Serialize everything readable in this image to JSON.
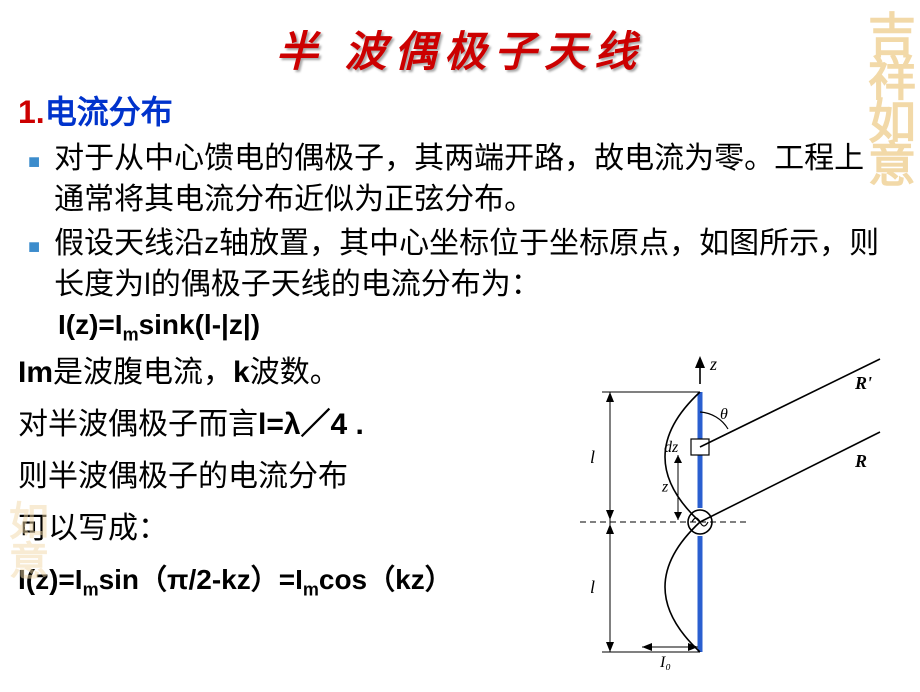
{
  "title": "半 波偶极子天线",
  "watermark_tr": "吉祥如意",
  "watermark_bl": "如意",
  "section": {
    "num": "1.",
    "text": "电流分布"
  },
  "bullets": [
    "对于从中心馈电的偶极子，其两端开路，故电流为零。工程上通常将其电流分布近似为正弦分布。",
    "假设天线沿z轴放置，其中心坐标位于坐标原点，如图所示，则长度为l的偶极子天线的电流分布为："
  ],
  "formula1": {
    "pre": "I(z)=I",
    "sub": "m",
    "post": "sink(l-|z|)"
  },
  "line1": {
    "a": "Im",
    "b": "是波腹电流，",
    "c": "k",
    "d": "波数。"
  },
  "line2": {
    "a": "对半波偶极子而言",
    "b": "l=λ／4 ."
  },
  "line3": "则半波偶极子的电流分布",
  "line4": "可以写成：",
  "formula2": {
    "a": "I(z)=I",
    "sub1": "m",
    "b": "sin（π/2-kz）=I",
    "sub2": "m",
    "c": "cos（kz）"
  },
  "diagram": {
    "labels": {
      "z": "z",
      "R": "R",
      "Rp": "R'",
      "theta": "θ",
      "dz": "dz",
      "zs": "z",
      "l1": "l",
      "l2": "l",
      "I0": "I₀"
    },
    "colors": {
      "stroke": "#000000",
      "antenna": "#2a5fd0",
      "bg": "#ffffff"
    },
    "stroke_w": 1.6,
    "antenna_w": 5
  }
}
